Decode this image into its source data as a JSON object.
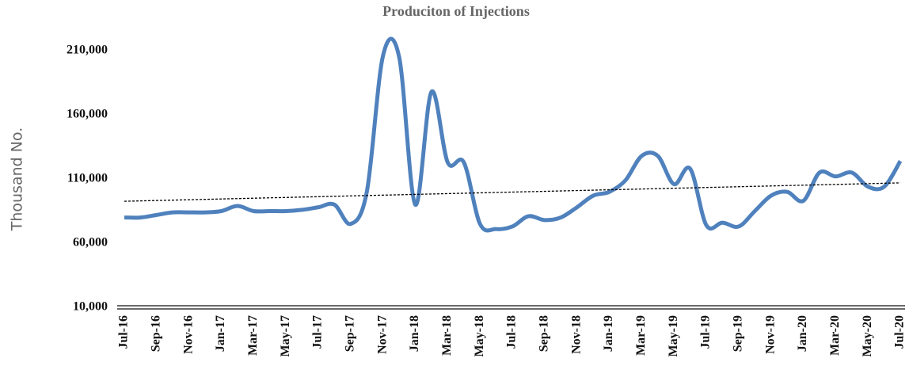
{
  "chart_data": {
    "type": "line",
    "title": "Produciton of Injections",
    "y_label": "Thousand No.",
    "categories": [
      "Jul-16",
      null,
      "Sep-16",
      null,
      "Nov-16",
      null,
      "Jan-17",
      null,
      "Mar-17",
      null,
      "May-17",
      null,
      "Jul-17",
      null,
      "Sep-17",
      null,
      "Nov-17",
      null,
      "Jan-18",
      null,
      "Mar-18",
      null,
      "May-18",
      null,
      "Jul-18",
      null,
      "Sep-18",
      null,
      "Nov-18",
      null,
      "Jan-19",
      null,
      "Mar-19",
      null,
      "May-19",
      null,
      "Jul-19",
      null,
      "Sep-19",
      null,
      "Nov-19",
      null,
      "Jan-20",
      null,
      "Mar-20",
      null,
      "May-20",
      null,
      "Jul-20"
    ],
    "series": [
      {
        "color": "#4f81bd",
        "values": [
          80000,
          80000,
          82000,
          84000,
          84000,
          84000,
          85000,
          89000,
          85000,
          85000,
          85000,
          86000,
          88000,
          90000,
          75000,
          100000,
          206000,
          205000,
          90000,
          178000,
          123000,
          123000,
          75000,
          71000,
          73000,
          81000,
          78000,
          80000,
          88000,
          97000,
          100000,
          109000,
          128000,
          128000,
          106000,
          118000,
          74000,
          76000,
          73000,
          85000,
          97000,
          100000,
          93000,
          115000,
          112000,
          115000,
          104000,
          104000,
          124000
        ]
      }
    ],
    "trendline": true,
    "ylim": [
      10000,
      210000
    ],
    "yticks": [
      {
        "value": 10000,
        "label": "10,000"
      },
      {
        "value": 60000,
        "label": "60,000"
      },
      {
        "value": 110000,
        "label": "110,000"
      },
      {
        "value": 160000,
        "label": "160,000"
      },
      {
        "value": 210000,
        "label": "210,000"
      }
    ]
  }
}
